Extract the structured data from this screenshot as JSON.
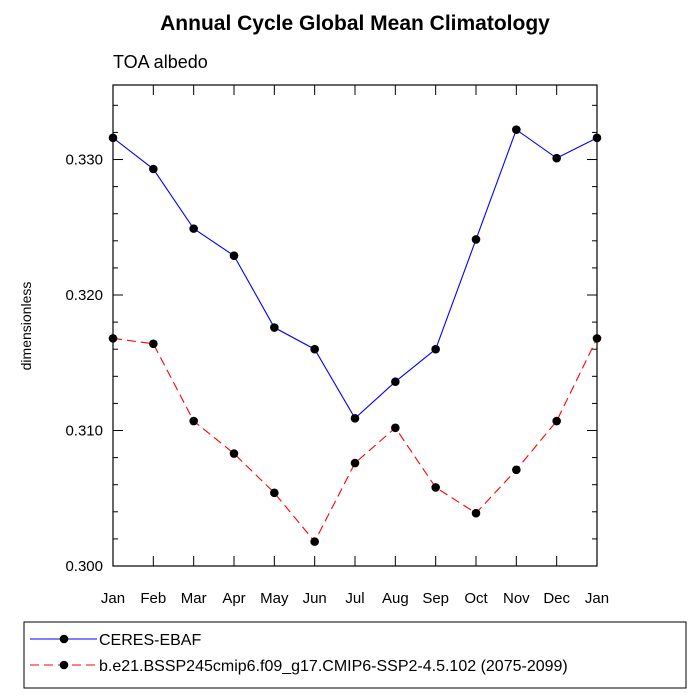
{
  "chart_data": {
    "type": "line",
    "title": "Annual Cycle Global Mean Climatology",
    "subtitle": "TOA albedo",
    "xlabel": "",
    "ylabel": "dimensionless",
    "categories": [
      "Jan",
      "Feb",
      "Mar",
      "Apr",
      "May",
      "Jun",
      "Jul",
      "Aug",
      "Sep",
      "Oct",
      "Nov",
      "Dec",
      "Jan"
    ],
    "ylim": [
      0.3,
      0.3355
    ],
    "yticks": [
      0.3,
      0.31,
      0.32,
      0.33
    ],
    "ytick_labels": [
      "0.300",
      "0.310",
      "0.320",
      "0.330"
    ],
    "series": [
      {
        "name": "CERES-EBAF",
        "color": "#0000ff",
        "dash": "solid",
        "values": [
          0.3316,
          0.3293,
          0.3249,
          0.3229,
          0.3176,
          0.316,
          0.3109,
          0.3136,
          0.316,
          0.3241,
          0.3322,
          0.3301,
          0.3316
        ]
      },
      {
        "name": "b.e21.BSSP245cmip6.f09_g17.CMIP6-SSP2-4.5.102 (2075-2099)",
        "color": "#ff0000",
        "dash": "dashed",
        "values": [
          0.3168,
          0.3164,
          0.3107,
          0.3083,
          0.3054,
          0.3018,
          0.3076,
          0.3102,
          0.3058,
          0.3039,
          0.3071,
          0.3107,
          0.3168
        ]
      }
    ],
    "legend_position": "bottom-left",
    "grid": false
  }
}
